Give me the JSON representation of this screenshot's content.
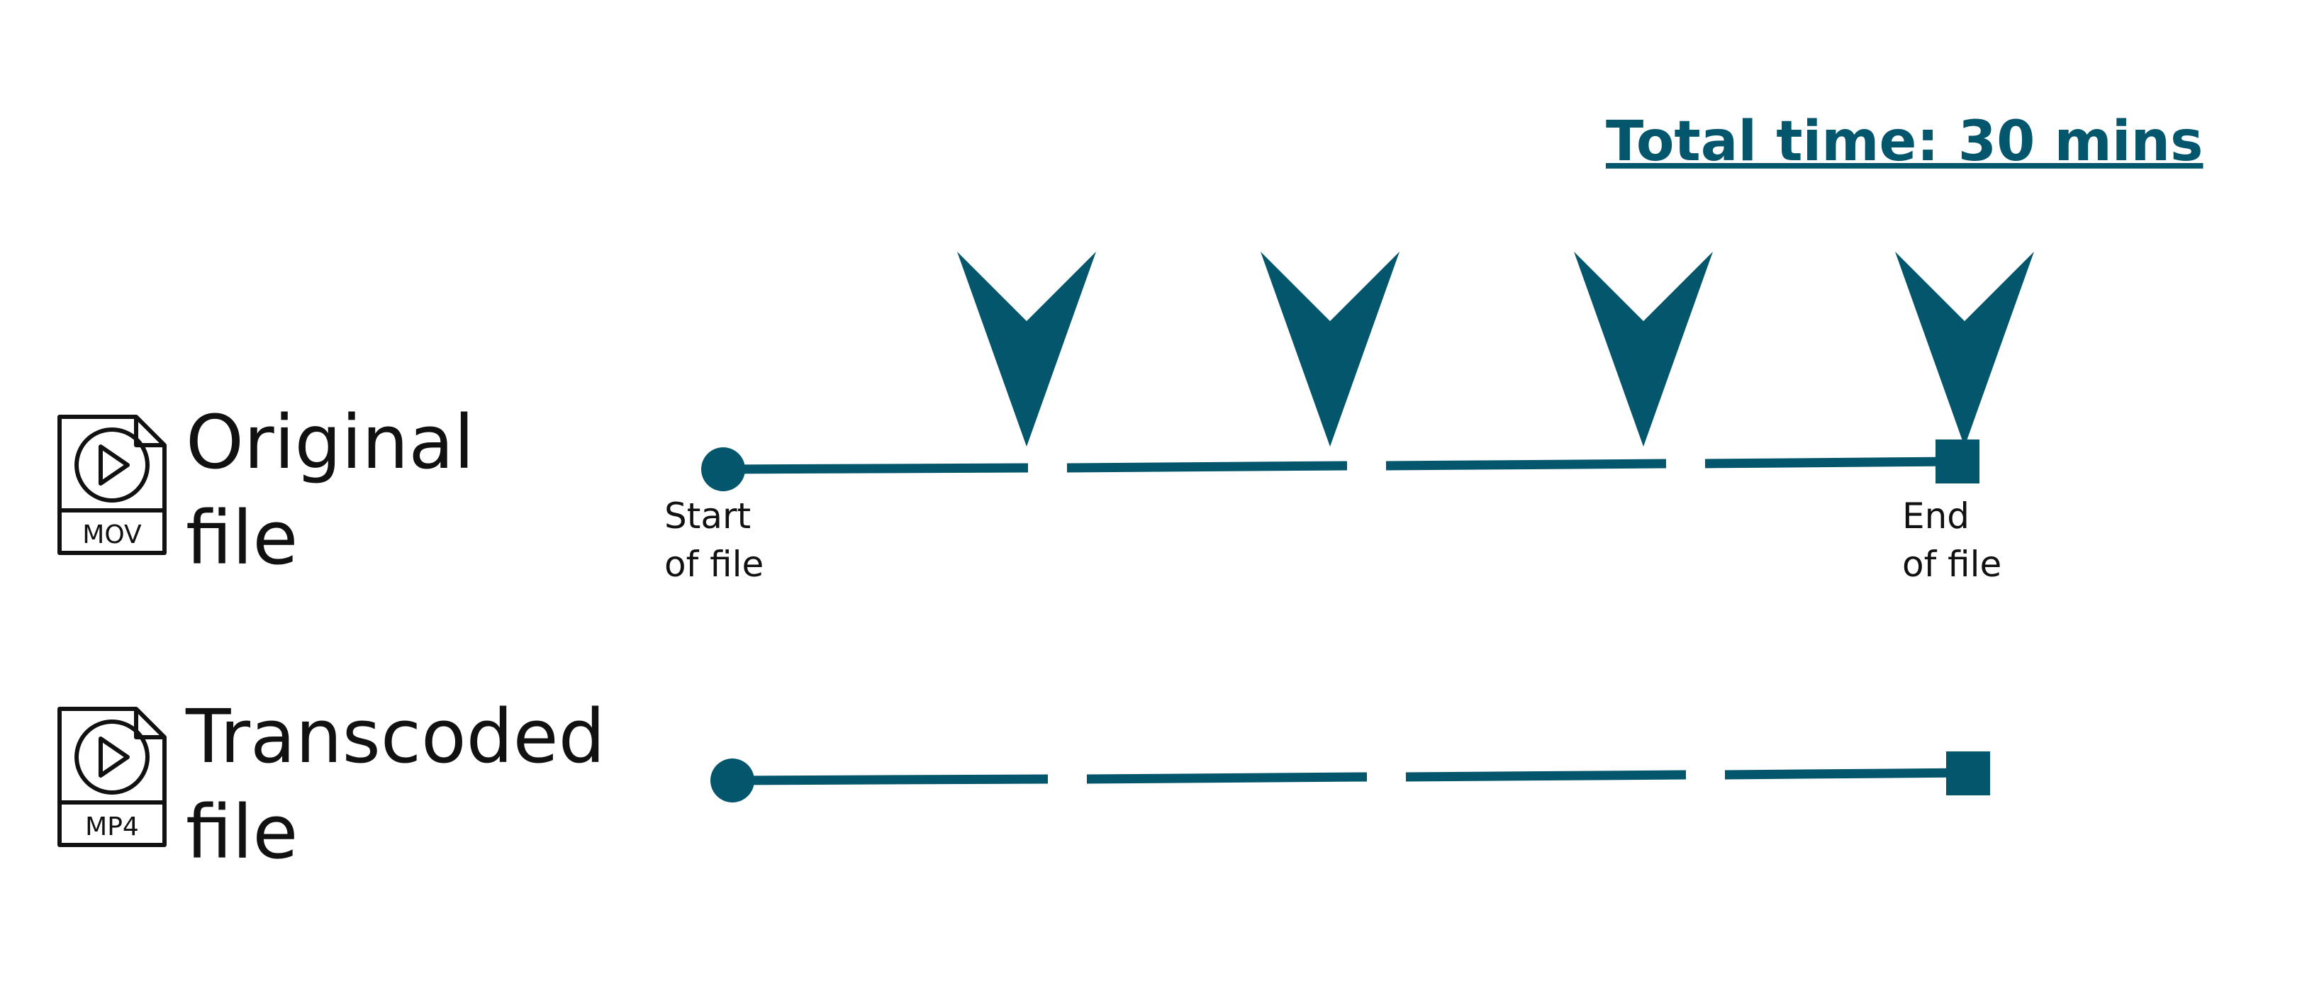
{
  "header": {
    "total_time": "Total time: 30 mins"
  },
  "tracks": [
    {
      "file_label_line1": "Original",
      "file_label_line2": "file",
      "file_type": "MOV",
      "start_label_line1": "Start",
      "start_label_line2": "of file",
      "end_label_line1": "End",
      "end_label_line2": "of file",
      "segments": 4,
      "markers": 4
    },
    {
      "file_label_line1": "Transcoded",
      "file_label_line2": "file",
      "file_type": "MP4",
      "segments": 4,
      "markers": 0
    }
  ],
  "colors": {
    "accent": "#03566b",
    "text": "#111111",
    "background": "#ffffff"
  },
  "icons": {
    "file": "video-file-icon",
    "marker": "arrow-down-marker-icon"
  }
}
